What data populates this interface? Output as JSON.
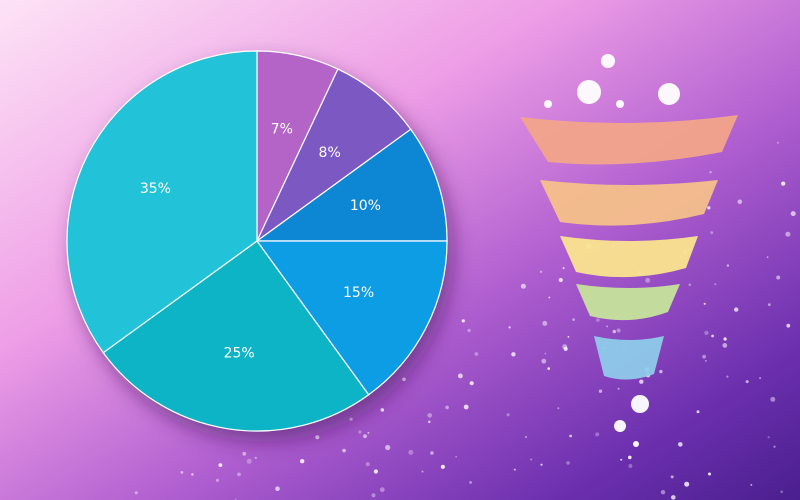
{
  "chart_data": {
    "type": "pie",
    "values": [
      7,
      8,
      10,
      15,
      25,
      35
    ],
    "value_labels": [
      "7%",
      "8%",
      "10%",
      "15%",
      "25%",
      "35%"
    ],
    "colors": [
      "#b463c6",
      "#7c58c3",
      "#0b87d3",
      "#0c9de4",
      "#0fb4c6",
      "#22c3d9"
    ]
  }
}
